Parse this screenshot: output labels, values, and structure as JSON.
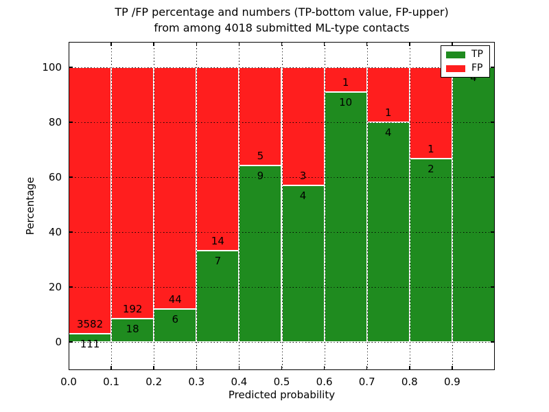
{
  "figure": {
    "title_line1": "TP /FP percentage and numbers (TP-bottom value, FP-upper)",
    "title_line2": "from among 4018 submitted ML-type contacts",
    "xlabel": "Predicted probability",
    "ylabel": "Percentage"
  },
  "legend": {
    "items": [
      {
        "label": "TP",
        "color": "#1f8b1f"
      },
      {
        "label": "FP",
        "color": "#ff1e1e"
      }
    ]
  },
  "axes": {
    "xtick_labels": [
      "0.0",
      "0.1",
      "0.2",
      "0.3",
      "0.4",
      "0.5",
      "0.6",
      "0.7",
      "0.8",
      "0.9"
    ],
    "ytick_labels": [
      "0",
      "20",
      "40",
      "60",
      "80",
      "100"
    ],
    "ytick_values": [
      0,
      20,
      40,
      60,
      80,
      100
    ],
    "xlim": [
      0.0,
      1.0
    ],
    "ylim": [
      -10,
      110
    ],
    "grid": true
  },
  "chart_data": {
    "type": "bar",
    "stacked": true,
    "title": "TP /FP percentage and numbers (TP-bottom value, FP-upper) from among 4018 submitted ML-type contacts",
    "xlabel": "Predicted probability",
    "ylabel": "Percentage",
    "ylim": [
      -10,
      110
    ],
    "xlim": [
      0.0,
      1.0
    ],
    "grid": true,
    "legend_position": "upper right",
    "total_submitted": 4018,
    "colors": {
      "TP": "#1f8b1f",
      "FP": "#ff1e1e"
    },
    "series_names": [
      "TP",
      "FP"
    ],
    "bins": [
      {
        "x_range": [
          0.0,
          0.1
        ],
        "tp_count": 111,
        "fp_count": 3582,
        "tp_pct": 3.0,
        "fp_pct": 97.0
      },
      {
        "x_range": [
          0.1,
          0.2
        ],
        "tp_count": 18,
        "fp_count": 192,
        "tp_pct": 8.6,
        "fp_pct": 91.4
      },
      {
        "x_range": [
          0.2,
          0.3
        ],
        "tp_count": 6,
        "fp_count": 44,
        "tp_pct": 12.0,
        "fp_pct": 88.0
      },
      {
        "x_range": [
          0.3,
          0.4
        ],
        "tp_count": 7,
        "fp_count": 14,
        "tp_pct": 33.3,
        "fp_pct": 66.7
      },
      {
        "x_range": [
          0.4,
          0.5
        ],
        "tp_count": 9,
        "fp_count": 5,
        "tp_pct": 64.3,
        "fp_pct": 35.7
      },
      {
        "x_range": [
          0.5,
          0.6
        ],
        "tp_count": 4,
        "fp_count": 3,
        "tp_pct": 57.1,
        "fp_pct": 42.9
      },
      {
        "x_range": [
          0.6,
          0.7
        ],
        "tp_count": 10,
        "fp_count": 1,
        "tp_pct": 90.9,
        "fp_pct": 9.1
      },
      {
        "x_range": [
          0.7,
          0.8
        ],
        "tp_count": 4,
        "fp_count": 1,
        "tp_pct": 80.0,
        "fp_pct": 20.0
      },
      {
        "x_range": [
          0.8,
          0.9
        ],
        "tp_count": 2,
        "fp_count": 1,
        "tp_pct": 66.7,
        "fp_pct": 33.3
      },
      {
        "x_range": [
          0.9,
          1.0
        ],
        "tp_count": 4,
        "fp_count": 0,
        "tp_pct": 100.0,
        "fp_pct": 0.0
      }
    ]
  }
}
